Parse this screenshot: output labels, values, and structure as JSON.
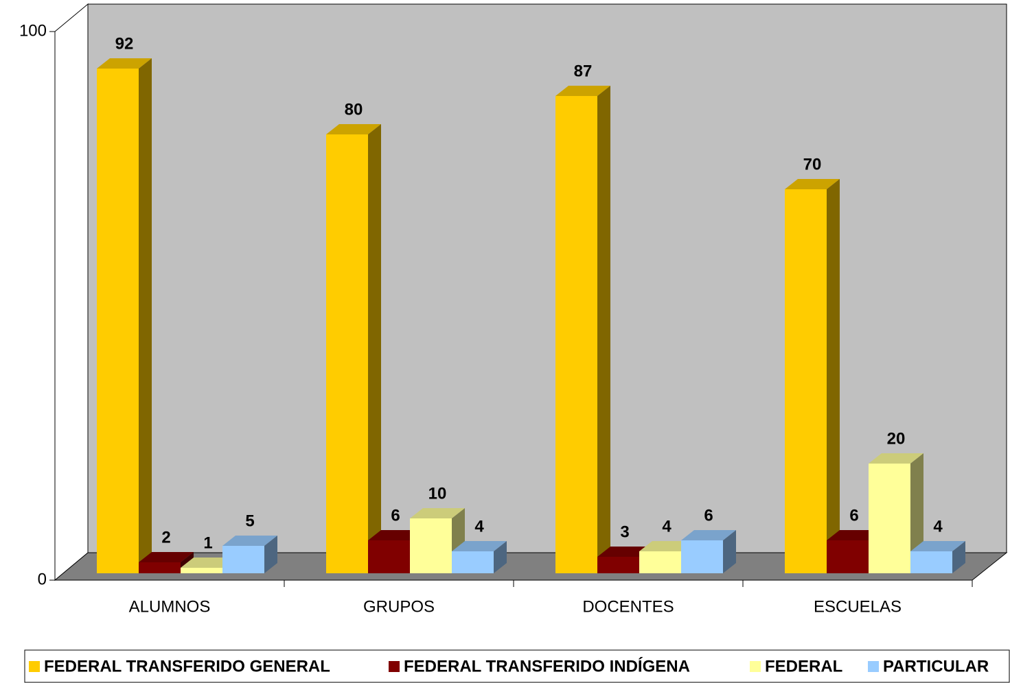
{
  "chart_data": {
    "type": "bar3d",
    "categories": [
      "ALUMNOS",
      "GRUPOS",
      "DOCENTES",
      "ESCUELAS"
    ],
    "series": [
      {
        "name": "FEDERAL TRANSFERIDO GENERAL",
        "color": "#FFCC00",
        "values": [
          92,
          80,
          87,
          70
        ]
      },
      {
        "name": "FEDERAL TRANSFERIDO INDÍGENA",
        "color": "#800000",
        "values": [
          2,
          6,
          3,
          6
        ]
      },
      {
        "name": "FEDERAL",
        "color": "#FFFF99",
        "values": [
          1,
          10,
          4,
          20
        ]
      },
      {
        "name": "PARTICULAR",
        "color": "#99CCFF",
        "values": [
          5,
          4,
          6,
          4
        ]
      }
    ],
    "ylim": [
      0,
      100
    ],
    "yticks": [
      0,
      100
    ],
    "legend": "bottom"
  }
}
